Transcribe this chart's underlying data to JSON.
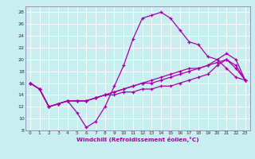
{
  "xlabel": "Windchill (Refroidissement éolien,°C)",
  "xlim": [
    -0.5,
    23.5
  ],
  "ylim": [
    8,
    29
  ],
  "yticks": [
    8,
    10,
    12,
    14,
    16,
    18,
    20,
    22,
    24,
    26,
    28
  ],
  "xticks": [
    0,
    1,
    2,
    3,
    4,
    5,
    6,
    7,
    8,
    9,
    10,
    11,
    12,
    13,
    14,
    15,
    16,
    17,
    18,
    19,
    20,
    21,
    22,
    23
  ],
  "bg_color": "#c8eef0",
  "line_color": "#aa00aa",
  "border_color": "#8888aa",
  "series": [
    [
      16.0,
      15.0,
      12.0,
      12.5,
      13.0,
      11.0,
      8.5,
      9.5,
      12.0,
      15.5,
      19.0,
      23.5,
      27.0,
      27.5,
      28.0,
      27.0,
      25.0,
      23.0,
      22.5,
      20.5,
      20.0,
      18.5,
      17.0,
      16.5
    ],
    [
      16.0,
      15.0,
      12.0,
      12.5,
      13.0,
      13.0,
      13.0,
      13.5,
      14.0,
      14.5,
      15.0,
      15.5,
      16.0,
      16.5,
      17.0,
      17.5,
      18.0,
      18.5,
      18.5,
      19.0,
      19.5,
      20.0,
      19.0,
      16.5
    ],
    [
      16.0,
      15.0,
      12.0,
      12.5,
      13.0,
      13.0,
      13.0,
      13.5,
      14.0,
      14.5,
      15.0,
      15.5,
      16.0,
      16.0,
      16.5,
      17.0,
      17.5,
      18.0,
      18.5,
      19.0,
      20.0,
      21.0,
      20.0,
      16.5
    ],
    [
      16.0,
      15.0,
      12.0,
      12.5,
      13.0,
      13.0,
      13.0,
      13.5,
      14.0,
      14.0,
      14.5,
      14.5,
      15.0,
      15.0,
      15.5,
      15.5,
      16.0,
      16.5,
      17.0,
      17.5,
      19.0,
      20.0,
      18.5,
      16.5
    ]
  ]
}
